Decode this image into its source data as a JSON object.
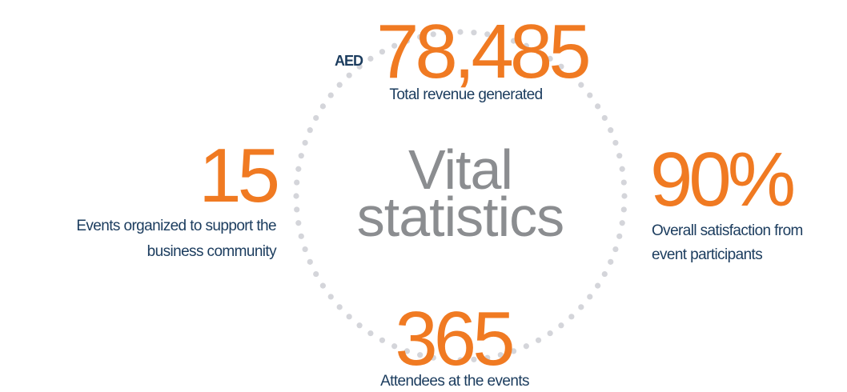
{
  "title": [
    "Vital",
    "statistics"
  ],
  "stats": [
    {
      "prefix": "AED",
      "value": "78,485",
      "label": [
        "Total revenue generated"
      ]
    },
    {
      "value": "15",
      "label": [
        "Events organized to support the",
        "business community"
      ]
    },
    {
      "value": "90%",
      "label": [
        "Overall satisfaction from",
        "event participants"
      ]
    },
    {
      "value": "365",
      "label": [
        "Attendees at the events"
      ]
    }
  ]
}
